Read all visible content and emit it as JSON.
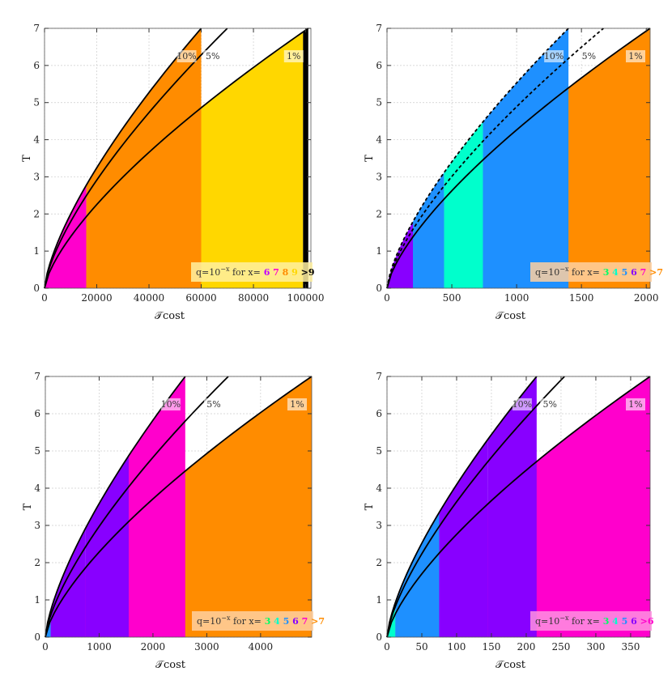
{
  "chart_data": [
    {
      "type": "area",
      "xlabel": "𝒯cost",
      "ylabel": "T",
      "xlim": [
        0,
        102000
      ],
      "ylim": [
        0,
        7
      ],
      "xticks": [
        0,
        20000,
        40000,
        60000,
        80000,
        100000
      ],
      "xtick_labels": [
        "0",
        "20000",
        "40000",
        "60000",
        "80000",
        "100000"
      ],
      "yticks": [
        0,
        1,
        2,
        3,
        4,
        5,
        6,
        7
      ],
      "curves": [
        {
          "label": "10%",
          "x_at_T7": 60000,
          "style": "solid"
        },
        {
          "label": "5%",
          "x_at_T7": 70000,
          "style": "solid"
        },
        {
          "label": "1%",
          "x_at_T7": 101000,
          "style": "solid"
        }
      ],
      "regions": [
        {
          "x_from": 0,
          "x_to": 11000,
          "color": "#ff00cc",
          "below_curve": "1%",
          "t_max": 1.0
        },
        {
          "x_from": 11000,
          "x_to": 99000,
          "color": "#ffd700",
          "below_curve": "1%"
        },
        {
          "x_from": 99000,
          "x_to": 101000,
          "color": "#000000",
          "below_curve": "1%"
        },
        {
          "x_from": 0,
          "x_to": 16000,
          "color": "#ff00cc",
          "below_curve": "10%"
        },
        {
          "x_from": 16000,
          "x_to": 64000,
          "color": "#ff8c00",
          "below_curve": "10%"
        },
        {
          "x_from": 64000,
          "x_to": 70000,
          "color": "#ffd700",
          "below_curve": "10%"
        }
      ],
      "legend": {
        "prefix": "q=10",
        "exponent": "−x",
        "mid": " for x=",
        "items": [
          {
            "text": "6",
            "color": "#c200ff"
          },
          {
            "text": "7",
            "color": "#ff00cc"
          },
          {
            "text": "8",
            "color": "#ff8c00"
          },
          {
            "text": "9",
            "color": "#ffd700"
          },
          {
            "text": ">9",
            "color": "#000000"
          }
        ],
        "bg": "#fff0a0"
      }
    },
    {
      "type": "area",
      "xlabel": "𝒯cost",
      "ylabel": "T",
      "xlim": [
        0,
        2030
      ],
      "ylim": [
        0,
        7
      ],
      "xticks": [
        0,
        500,
        1000,
        1500,
        2000
      ],
      "xtick_labels": [
        "0",
        "500",
        "1000",
        "1500",
        "2000"
      ],
      "yticks": [
        0,
        1,
        2,
        3,
        4,
        5,
        6,
        7
      ],
      "curves": [
        {
          "label": "10%",
          "x_at_T7": 1400,
          "style": "dashed"
        },
        {
          "label": "5%",
          "x_at_T7": 1670,
          "style": "dashed"
        },
        {
          "label": "1%",
          "x_at_T7": 2030,
          "style": "solid"
        }
      ],
      "regions": [
        {
          "x_from": 0,
          "x_to": 140,
          "color": "#8800ff",
          "below_curve": "1%"
        },
        {
          "x_from": 140,
          "x_to": 1090,
          "color": "#ff00cc",
          "below_curve": "1%"
        },
        {
          "x_from": 1090,
          "x_to": 2030,
          "color": "#ff8c00",
          "below_curve": "1%"
        },
        {
          "x_from": 0,
          "x_to": 200,
          "color": "#8800ff",
          "below_curve": "10%"
        },
        {
          "x_from": 200,
          "x_to": 440,
          "color": "#1e90ff",
          "below_curve": "10%"
        },
        {
          "x_from": 440,
          "x_to": 740,
          "color": "#00ffcc",
          "below_curve": "10%"
        },
        {
          "x_from": 740,
          "x_to": 1670,
          "color": "#1e90ff",
          "below_curve": "10%"
        }
      ],
      "legend": {
        "prefix": "q=10",
        "exponent": "−x",
        "mid": " for x=",
        "items": [
          {
            "text": "3",
            "color": "#00ff66"
          },
          {
            "text": "4",
            "color": "#00ffcc"
          },
          {
            "text": "5",
            "color": "#1e90ff"
          },
          {
            "text": "6",
            "color": "#8800ff"
          },
          {
            "text": "7",
            "color": "#ff00cc"
          },
          {
            "text": ">7",
            "color": "#ff8c00"
          }
        ],
        "bg": "#ffd0a0"
      }
    },
    {
      "type": "area",
      "xlabel": "𝒯cost",
      "ylabel": "T",
      "xlim": [
        0,
        4950
      ],
      "ylim": [
        0,
        7
      ],
      "xticks": [
        0,
        1000,
        2000,
        3000,
        4000
      ],
      "xtick_labels": [
        "0",
        "1000",
        "2000",
        "3000",
        "4000"
      ],
      "yticks": [
        0,
        1,
        2,
        3,
        4,
        5,
        6,
        7
      ],
      "curves": [
        {
          "label": "10%",
          "x_at_T7": 2600,
          "style": "solid"
        },
        {
          "label": "5%",
          "x_at_T7": 3400,
          "style": "solid"
        },
        {
          "label": "1%",
          "x_at_T7": 4950,
          "style": "solid"
        }
      ],
      "regions": [
        {
          "x_from": 0,
          "x_to": 100,
          "color": "#1e90ff",
          "below_curve": "1%"
        },
        {
          "x_from": 100,
          "x_to": 1400,
          "color": "#ff00cc",
          "below_curve": "1%"
        },
        {
          "x_from": 1400,
          "x_to": 4950,
          "color": "#ff8c00",
          "below_curve": "1%"
        },
        {
          "x_from": 0,
          "x_to": 100,
          "color": "#1e90ff",
          "below_curve": "10%"
        },
        {
          "x_from": 100,
          "x_to": 750,
          "color": "#8800ff",
          "below_curve": "10%"
        },
        {
          "x_from": 750,
          "x_to": 1550,
          "color": "#8800ff",
          "below_curve": "10%"
        },
        {
          "x_from": 1550,
          "x_to": 3400,
          "color": "#ff00cc",
          "below_curve": "10%"
        }
      ],
      "legend": {
        "prefix": "q=10",
        "exponent": "−x",
        "mid": " for x=",
        "items": [
          {
            "text": "3",
            "color": "#00ff66"
          },
          {
            "text": "4",
            "color": "#00ffcc"
          },
          {
            "text": "5",
            "color": "#1e90ff"
          },
          {
            "text": "6",
            "color": "#8800ff"
          },
          {
            "text": "7",
            "color": "#ff00cc"
          },
          {
            "text": ">7",
            "color": "#ff8c00"
          }
        ],
        "bg": "#ffd0a0"
      }
    },
    {
      "type": "area",
      "xlabel": "𝒯cost",
      "ylabel": "T",
      "xlim": [
        0,
        378
      ],
      "ylim": [
        0,
        7
      ],
      "xticks": [
        0,
        50,
        100,
        150,
        200,
        250,
        300,
        350
      ],
      "xtick_labels": [
        "0",
        "50",
        "100",
        "150",
        "200",
        "250",
        "300",
        "350"
      ],
      "yticks": [
        0,
        1,
        2,
        3,
        4,
        5,
        6,
        7
      ],
      "curves": [
        {
          "label": "10%",
          "x_at_T7": 215,
          "style": "solid"
        },
        {
          "label": "5%",
          "x_at_T7": 255,
          "style": "solid"
        },
        {
          "label": "1%",
          "x_at_T7": 378,
          "style": "solid"
        }
      ],
      "regions": [
        {
          "x_from": 0,
          "x_to": 12,
          "color": "#00ffcc",
          "below_curve": "1%"
        },
        {
          "x_from": 12,
          "x_to": 118,
          "color": "#8800ff",
          "below_curve": "1%"
        },
        {
          "x_from": 118,
          "x_to": 378,
          "color": "#ff00cc",
          "below_curve": "1%"
        },
        {
          "x_from": 0,
          "x_to": 12,
          "color": "#00ffcc",
          "below_curve": "10%"
        },
        {
          "x_from": 12,
          "x_to": 75,
          "color": "#1e90ff",
          "below_curve": "10%"
        },
        {
          "x_from": 75,
          "x_to": 145,
          "color": "#8800ff",
          "below_curve": "10%"
        },
        {
          "x_from": 145,
          "x_to": 255,
          "color": "#8800ff",
          "below_curve": "10%"
        }
      ],
      "legend": {
        "prefix": "q=10",
        "exponent": "−x",
        "mid": " for x=",
        "items": [
          {
            "text": "3",
            "color": "#00ff66"
          },
          {
            "text": "4",
            "color": "#00ffcc"
          },
          {
            "text": "5",
            "color": "#1e90ff"
          },
          {
            "text": "6",
            "color": "#8800ff"
          },
          {
            "text": ">6",
            "color": "#ff00cc"
          }
        ],
        "bg": "#ff90e0"
      }
    }
  ]
}
